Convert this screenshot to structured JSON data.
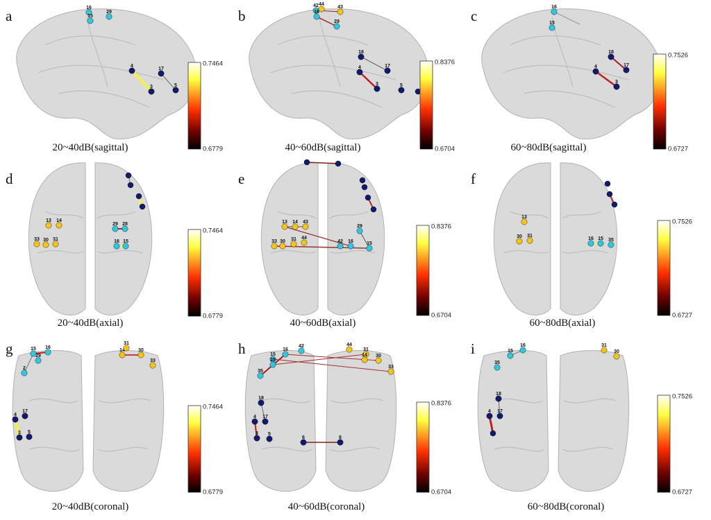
{
  "panels": [
    {
      "letter": "a",
      "caption": "20~40dB(sagittal)",
      "colorbar": {
        "max": "0.7464",
        "min": "0.6779"
      },
      "nodes": [
        "16",
        "15",
        "29",
        "4",
        "3",
        "17",
        "5"
      ]
    },
    {
      "letter": "b",
      "caption": "40~60dB(sagittal)",
      "colorbar": {
        "max": "0.8376",
        "min": "0.6704"
      },
      "nodes": [
        "42",
        "44",
        "16",
        "43",
        "29",
        "18",
        "4",
        "3",
        "17",
        "5"
      ]
    },
    {
      "letter": "c",
      "caption": "60~80dB(sagittal)",
      "colorbar": {
        "max": "0.7526",
        "min": "0.6727"
      },
      "nodes": [
        "16",
        "15",
        "18",
        "4",
        "3",
        "17"
      ]
    },
    {
      "letter": "d",
      "caption": "20~40dB(axial)",
      "colorbar": {
        "max": "0.7464",
        "min": "0.6779"
      },
      "nodes": [
        "13",
        "14",
        "33",
        "30",
        "31",
        "29",
        "28",
        "16",
        "15"
      ]
    },
    {
      "letter": "e",
      "caption": "40~60dB(axial)",
      "colorbar": {
        "max": "0.8376",
        "min": "0.6704"
      },
      "nodes": [
        "13",
        "14",
        "43",
        "33",
        "30",
        "31",
        "44",
        "29",
        "42",
        "16",
        "15"
      ]
    },
    {
      "letter": "f",
      "caption": "60~80dB(axial)",
      "colorbar": {
        "max": "0.7526",
        "min": "0.6727"
      },
      "nodes": [
        "13",
        "30",
        "31",
        "16",
        "15",
        "35"
      ]
    },
    {
      "letter": "g",
      "caption": "20~40dB(coronal)",
      "colorbar": {
        "max": "0.7464",
        "min": "0.6779"
      },
      "nodes": [
        "15",
        "29",
        "16",
        "2",
        "14",
        "31",
        "30",
        "33",
        "4",
        "17",
        "3",
        "5"
      ]
    },
    {
      "letter": "h",
      "caption": "40~60dB(coronal)",
      "colorbar": {
        "max": "0.8376",
        "min": "0.6704"
      },
      "nodes": [
        "16",
        "42",
        "15",
        "28",
        "35",
        "44",
        "31",
        "14",
        "30",
        "33",
        "18",
        "4",
        "17",
        "3",
        "5",
        "6",
        "8"
      ]
    },
    {
      "letter": "i",
      "caption": "60~80dB(coronal)",
      "colorbar": {
        "max": "0.7526",
        "min": "0.6727"
      },
      "nodes": [
        "15",
        "16",
        "35",
        "31",
        "30",
        "18",
        "4",
        "17"
      ]
    }
  ]
}
